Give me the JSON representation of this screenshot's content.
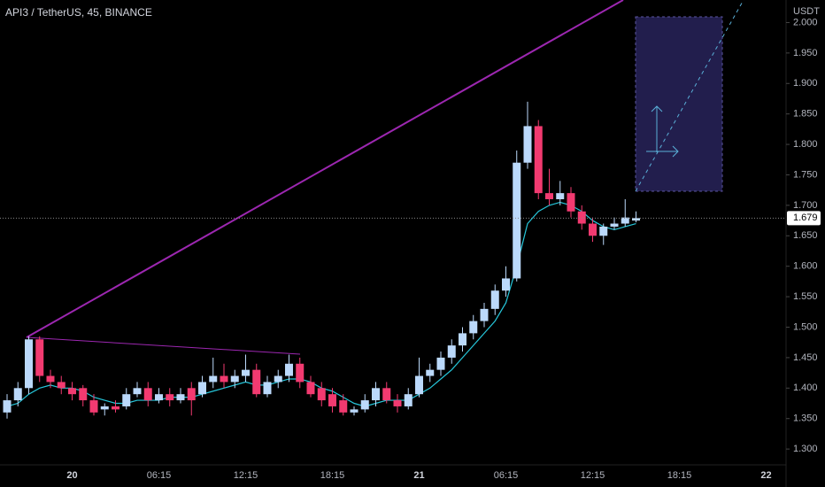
{
  "chart_data": {
    "type": "candlestick",
    "title": "API3 / TetherUS, 45, BINANCE",
    "y_axis_label": "USDT",
    "categories": [
      null,
      null,
      null,
      null,
      null,
      null,
      "20",
      null,
      null,
      null,
      null,
      null,
      null,
      null,
      "06:15",
      null,
      null,
      null,
      null,
      null,
      null,
      null,
      "12:15",
      null,
      null,
      null,
      null,
      null,
      null,
      null,
      "18:15",
      null,
      null,
      null,
      null,
      null,
      null,
      null,
      "21",
      null,
      null,
      null,
      null,
      null,
      null,
      null,
      "06:15",
      null,
      null,
      null,
      null,
      null,
      null,
      null,
      "12:15",
      null,
      null,
      null,
      null,
      null,
      null,
      null,
      "18:15",
      null,
      null,
      null,
      null,
      null,
      null,
      null,
      "22"
    ],
    "open": [
      1.36,
      1.38,
      1.4,
      1.48,
      1.42,
      1.41,
      1.4,
      1.4,
      1.38,
      1.365,
      1.37,
      1.37,
      1.39,
      1.4,
      1.38,
      1.39,
      1.38,
      1.4,
      1.39,
      1.41,
      1.42,
      1.41,
      1.42,
      1.43,
      1.39,
      1.41,
      1.42,
      1.44,
      1.41,
      1.4,
      1.39,
      1.38,
      1.36,
      1.365,
      1.38,
      1.4,
      1.38,
      1.37,
      1.39,
      1.42,
      1.43,
      1.45,
      1.47,
      1.49,
      1.51,
      1.53,
      1.56,
      1.58,
      1.77,
      1.83,
      1.72,
      1.71,
      1.72,
      1.69,
      1.67,
      1.65,
      1.665,
      1.67,
      1.675,
      null,
      null,
      null,
      null,
      null,
      null,
      null,
      null,
      null,
      null,
      null,
      null
    ],
    "high": [
      1.39,
      1.41,
      1.485,
      1.485,
      1.43,
      1.42,
      1.41,
      1.405,
      1.39,
      1.375,
      1.38,
      1.4,
      1.41,
      1.41,
      1.4,
      1.4,
      1.4,
      1.41,
      1.42,
      1.45,
      1.44,
      1.43,
      1.455,
      1.44,
      1.42,
      1.43,
      1.455,
      1.45,
      1.42,
      1.41,
      1.4,
      1.39,
      1.37,
      1.39,
      1.41,
      1.41,
      1.39,
      1.4,
      1.45,
      1.44,
      1.46,
      1.48,
      1.5,
      1.52,
      1.54,
      1.57,
      1.6,
      1.79,
      1.87,
      1.84,
      1.76,
      1.74,
      1.73,
      1.7,
      1.68,
      1.67,
      1.68,
      1.71,
      1.69,
      null,
      null,
      null,
      null,
      null,
      null,
      null,
      null,
      null,
      null,
      null,
      null
    ],
    "low": [
      1.35,
      1.37,
      1.39,
      1.41,
      1.4,
      1.39,
      1.38,
      1.37,
      1.355,
      1.355,
      1.36,
      1.365,
      1.385,
      1.37,
      1.375,
      1.37,
      1.375,
      1.355,
      1.385,
      1.4,
      1.4,
      1.4,
      1.41,
      1.385,
      1.385,
      1.4,
      1.41,
      1.4,
      1.385,
      1.37,
      1.36,
      1.355,
      1.355,
      1.36,
      1.37,
      1.375,
      1.36,
      1.365,
      1.385,
      1.41,
      1.42,
      1.44,
      1.46,
      1.48,
      1.5,
      1.52,
      1.55,
      1.575,
      1.76,
      1.71,
      1.7,
      1.7,
      1.68,
      1.66,
      1.64,
      1.635,
      1.66,
      1.665,
      1.672,
      null,
      null,
      null,
      null,
      null,
      null,
      null,
      null,
      null,
      null,
      null,
      null
    ],
    "close": [
      1.38,
      1.4,
      1.48,
      1.42,
      1.41,
      1.4,
      1.39,
      1.38,
      1.36,
      1.37,
      1.365,
      1.39,
      1.4,
      1.38,
      1.39,
      1.38,
      1.39,
      1.38,
      1.41,
      1.42,
      1.41,
      1.42,
      1.43,
      1.39,
      1.41,
      1.42,
      1.44,
      1.41,
      1.39,
      1.38,
      1.37,
      1.36,
      1.365,
      1.38,
      1.4,
      1.38,
      1.37,
      1.39,
      1.42,
      1.43,
      1.45,
      1.47,
      1.49,
      1.51,
      1.53,
      1.56,
      1.58,
      1.77,
      1.83,
      1.72,
      1.71,
      1.72,
      1.69,
      1.67,
      1.65,
      1.665,
      1.67,
      1.68,
      1.679,
      null,
      null,
      null,
      null,
      null,
      null,
      null,
      null,
      null,
      null,
      null,
      null
    ],
    "moving_average": {
      "color": "#26c6da",
      "values": [
        1.37,
        1.375,
        1.39,
        1.4,
        1.405,
        1.4,
        1.4,
        1.395,
        1.385,
        1.38,
        1.375,
        1.375,
        1.38,
        1.38,
        1.38,
        1.385,
        1.385,
        1.385,
        1.39,
        1.395,
        1.4,
        1.405,
        1.41,
        1.405,
        1.405,
        1.41,
        1.415,
        1.415,
        1.41,
        1.4,
        1.395,
        1.385,
        1.375,
        1.37,
        1.375,
        1.38,
        1.38,
        1.38,
        1.39,
        1.4,
        1.415,
        1.43,
        1.45,
        1.47,
        1.49,
        1.51,
        1.54,
        1.6,
        1.67,
        1.69,
        1.7,
        1.705,
        1.7,
        1.69,
        1.675,
        1.665,
        1.66,
        1.665,
        1.67,
        null,
        null,
        null,
        null,
        null,
        null,
        null,
        null,
        null,
        null,
        null,
        null
      ]
    },
    "up_color": "#bbd9fb",
    "down_color": "#f23a70",
    "last_price": {
      "value": 1.679,
      "label": "1.679"
    },
    "ylim": [
      1.274,
      2.037
    ],
    "yticks": [
      {
        "value": 1.3,
        "label": "1.300"
      },
      {
        "value": 1.35,
        "label": "1.350"
      },
      {
        "value": 1.4,
        "label": "1.400"
      },
      {
        "value": 1.45,
        "label": "1.450"
      },
      {
        "value": 1.5,
        "label": "1.500"
      },
      {
        "value": 1.55,
        "label": "1.550"
      },
      {
        "value": 1.6,
        "label": "1.600"
      },
      {
        "value": 1.65,
        "label": "1.650"
      },
      {
        "value": 1.7,
        "label": "1.700"
      },
      {
        "value": 1.75,
        "label": "1.750"
      },
      {
        "value": 1.8,
        "label": "1.800"
      },
      {
        "value": 1.85,
        "label": "1.850"
      },
      {
        "value": 1.9,
        "label": "1.900"
      },
      {
        "value": 1.95,
        "label": "1.950"
      },
      {
        "value": 2.0,
        "label": "2.000"
      }
    ]
  }
}
